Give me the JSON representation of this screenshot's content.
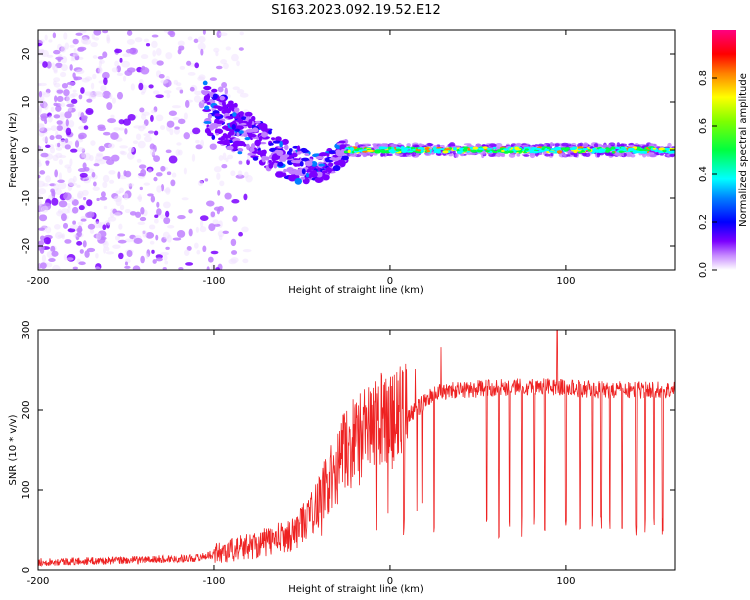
{
  "figure_title": "S163.2023.092.19.52.E12",
  "chart_data": [
    {
      "type": "heatmap",
      "xlabel": "Height of straight line (km)",
      "ylabel": "Frequency (Hz)",
      "xlim": [
        -200,
        162
      ],
      "ylim": [
        -25,
        25
      ],
      "x_ticks": [
        -200,
        -100,
        0,
        100
      ],
      "x_tick_labels": [
        "-200",
        "-100",
        "0",
        "100"
      ],
      "y_ticks": [
        -20,
        -10,
        0,
        10,
        20
      ],
      "y_tick_labels": [
        "-20",
        "-10",
        "0",
        "10",
        "20"
      ],
      "colorbar": {
        "label": "Normalized spectral amplitude",
        "range": [
          0,
          1
        ],
        "ticks": [
          0.0,
          0.2,
          0.4,
          0.6,
          0.8
        ],
        "tick_labels": [
          "0.0",
          "0.2",
          "0.4",
          "0.6",
          "0.8"
        ],
        "colormap": [
          "#ffffff",
          "#7b00ff",
          "#0000ff",
          "#00ffff",
          "#00ff00",
          "#ffff00",
          "#ff8000",
          "#ff0000",
          "#ff0080"
        ]
      },
      "features": [
        {
          "name": "diffuse noise",
          "x_range": [
            -200,
            -105
          ],
          "freq_range": [
            -25,
            25
          ],
          "amplitude": 0.1
        },
        {
          "name": "converging streak",
          "x": [
            -105,
            -90,
            -75,
            -60,
            -45,
            -35,
            -25
          ],
          "freq": [
            9,
            5,
            2,
            -2,
            -4,
            -3,
            0
          ],
          "amplitude": 0.3
        },
        {
          "name": "stable line",
          "x_range": [
            -25,
            162
          ],
          "freq": 0,
          "amplitude": 0.7
        }
      ]
    },
    {
      "type": "line",
      "xlabel": "Height of straight line (km)",
      "ylabel": "SNR (10 * v/v)",
      "xlim": [
        -200,
        162
      ],
      "ylim": [
        0,
        300
      ],
      "x_ticks": [
        -200,
        -100,
        0,
        100
      ],
      "x_tick_labels": [
        "-200",
        "-100",
        "0",
        "100"
      ],
      "y_ticks": [
        0,
        100,
        200,
        300
      ],
      "y_tick_labels": [
        "0",
        "100",
        "200",
        "300"
      ],
      "color": "#ee2222",
      "trend": {
        "x": [
          -200,
          -150,
          -110,
          -90,
          -70,
          -55,
          -45,
          -35,
          -25,
          -15,
          -5,
          5,
          15,
          25,
          40,
          60,
          80,
          100,
          120,
          140,
          162
        ],
        "y": [
          10,
          12,
          15,
          25,
          35,
          45,
          70,
          110,
          150,
          170,
          185,
          190,
          200,
          222,
          225,
          228,
          230,
          228,
          225,
          225,
          225
        ]
      },
      "dropouts": [
        8,
        25,
        55,
        62,
        68,
        75,
        82,
        88,
        95,
        100,
        108,
        115,
        120,
        125,
        132,
        140,
        145,
        150,
        155
      ]
    }
  ]
}
